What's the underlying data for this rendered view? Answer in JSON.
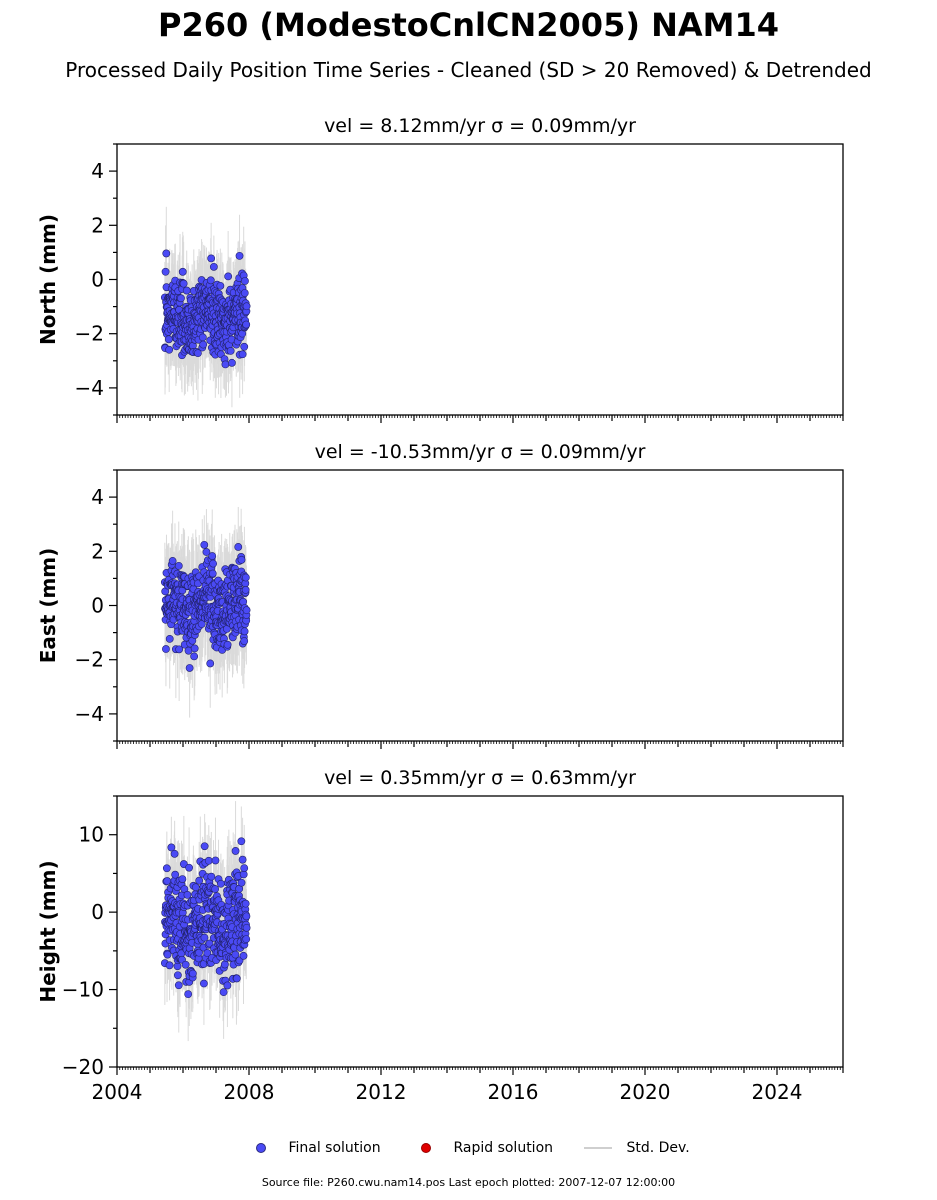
{
  "title": "P260 (ModestoCnlCN2005) NAM14",
  "subtitle": "Processed Daily Position Time Series - Cleaned (SD > 20 Removed) & Detrended",
  "colors": {
    "final": "#4a4af5",
    "rapid": "#e00000",
    "stddev": "#bdbdbd",
    "axis": "#000000"
  },
  "chart_data": [
    {
      "type": "scatter",
      "title": "vel = 8.12mm/yr   σ = 0.09mm/yr",
      "ylabel": "North (mm)",
      "xlim": [
        2004,
        2026
      ],
      "ylim": [
        -5,
        5
      ],
      "yticks": [
        -4,
        -2,
        0,
        2,
        4
      ],
      "series": [
        {
          "name": "Final solution",
          "x_range": [
            2005.45,
            2007.93
          ],
          "y_mean": -1.4,
          "y_spread": 0.9,
          "y_min": -4.0,
          "y_max": 1.2,
          "error_band": 1.5
        }
      ]
    },
    {
      "type": "scatter",
      "title": "vel = -10.53mm/yr   σ = 0.09mm/yr",
      "ylabel": "East (mm)",
      "xlim": [
        2004,
        2026
      ],
      "ylim": [
        -5,
        5
      ],
      "yticks": [
        -4,
        -2,
        0,
        2,
        4
      ],
      "series": [
        {
          "name": "Final solution",
          "x_range": [
            2005.45,
            2007.93
          ],
          "y_mean": 0.0,
          "y_spread": 1.0,
          "y_min": -3.4,
          "y_max": 2.8,
          "error_band": 1.6
        }
      ]
    },
    {
      "type": "scatter",
      "title": "vel = 0.35mm/yr   σ = 0.63mm/yr",
      "ylabel": "Height (mm)",
      "xlim": [
        2004,
        2026
      ],
      "ylim": [
        -20,
        15
      ],
      "yticks": [
        -20,
        -10,
        0,
        10
      ],
      "xticks": [
        2004,
        2008,
        2012,
        2016,
        2020,
        2024
      ],
      "series": [
        {
          "name": "Final solution",
          "x_range": [
            2005.45,
            2007.93
          ],
          "y_mean": -1.5,
          "y_spread": 4.5,
          "y_min": -14.0,
          "y_max": 13.5,
          "error_band": 5.5
        }
      ]
    }
  ],
  "legend": {
    "final": "Final solution",
    "rapid": "Rapid solution",
    "stddev": "Std. Dev."
  },
  "source": "Source file: P260.cwu.nam14.pos  Last epoch plotted: 2007-12-07 12:00:00"
}
